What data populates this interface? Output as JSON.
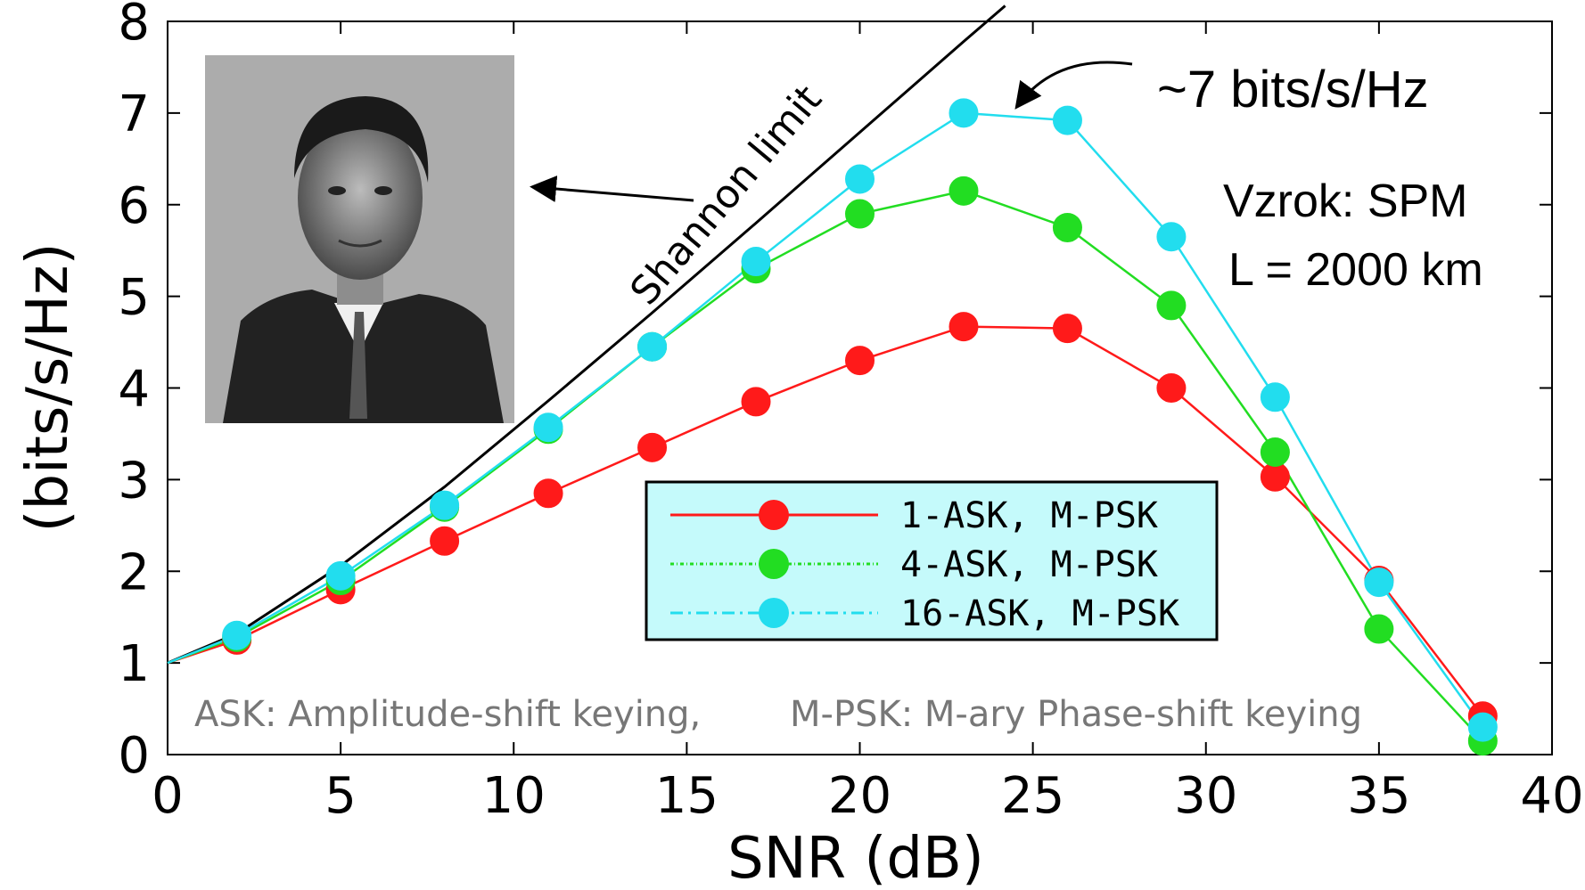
{
  "chart_data": {
    "type": "line",
    "xlabel": "SNR (dB)",
    "ylabel": "(bits/s/Hz)",
    "xlim": [
      0,
      40
    ],
    "ylim": [
      0,
      8
    ],
    "xticks": [
      0,
      5,
      10,
      15,
      20,
      25,
      30,
      35,
      40
    ],
    "yticks": [
      0,
      1,
      2,
      3,
      4,
      5,
      6,
      7,
      8
    ],
    "grid": false,
    "legend_position": "center-right",
    "series": [
      {
        "name": "1-ASK, M-PSK",
        "color": "#ff1a1a",
        "x": [
          0,
          2,
          5,
          8,
          11,
          14,
          17,
          20,
          23,
          26,
          29,
          32,
          35,
          38
        ],
        "y": [
          1.0,
          1.25,
          1.8,
          2.33,
          2.85,
          3.35,
          3.85,
          4.3,
          4.67,
          4.65,
          4.0,
          3.03,
          1.9,
          0.42
        ]
      },
      {
        "name": "4-ASK, M-PSK",
        "color": "#22dd22",
        "x": [
          0,
          2,
          5,
          8,
          11,
          14,
          17,
          20,
          23,
          26,
          29,
          32,
          35,
          38
        ],
        "y": [
          1.0,
          1.28,
          1.9,
          2.7,
          3.55,
          4.45,
          5.3,
          5.9,
          6.15,
          5.75,
          4.9,
          3.3,
          1.37,
          0.15
        ]
      },
      {
        "name": "16-ASK, M-PSK",
        "color": "#22ddee",
        "x": [
          0,
          2,
          5,
          8,
          11,
          14,
          17,
          20,
          23,
          26,
          29,
          32,
          35,
          38
        ],
        "y": [
          1.0,
          1.3,
          1.95,
          2.72,
          3.57,
          4.45,
          5.38,
          6.28,
          7.0,
          6.92,
          5.65,
          3.9,
          1.88,
          0.3
        ]
      }
    ],
    "shannon_limit": {
      "label": "Shannon limit",
      "color": "#000000",
      "x": [
        0,
        2,
        5,
        8,
        11,
        14,
        17,
        20,
        23,
        24.2
      ],
      "y": [
        1.0,
        1.32,
        2.06,
        2.92,
        3.86,
        4.82,
        5.8,
        6.79,
        7.78,
        8.17
      ]
    },
    "annotations": {
      "peak": "~7 bits/s/Hz",
      "cause": "Vzrok: SPM",
      "length": "L = 2000 km",
      "footnote_ask": "ASK: Amplitude-shift keying,",
      "footnote_psk": "M-PSK: M-ary Phase-shift keying"
    }
  }
}
